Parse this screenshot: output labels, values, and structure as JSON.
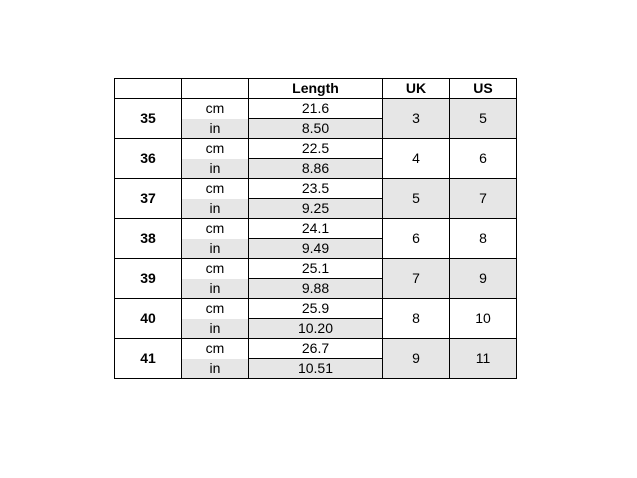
{
  "header": {
    "col1": "",
    "col2": "",
    "length": "Length",
    "uk": "UK",
    "us": "US"
  },
  "rows": [
    {
      "size": "35",
      "cm_label": "cm",
      "in_label": "in",
      "cm": "21.6",
      "in": "8.50",
      "uk": "3",
      "us": "5",
      "shaded": true
    },
    {
      "size": "36",
      "cm_label": "cm",
      "in_label": "in",
      "cm": "22.5",
      "in": "8.86",
      "uk": "4",
      "us": "6",
      "shaded": false
    },
    {
      "size": "37",
      "cm_label": "cm",
      "in_label": "in",
      "cm": "23.5",
      "in": "9.25",
      "uk": "5",
      "us": "7",
      "shaded": true
    },
    {
      "size": "38",
      "cm_label": "cm",
      "in_label": "in",
      "cm": "24.1",
      "in": "9.49",
      "uk": "6",
      "us": "8",
      "shaded": false
    },
    {
      "size": "39",
      "cm_label": "cm",
      "in_label": "in",
      "cm": "25.1",
      "in": "9.88",
      "uk": "7",
      "us": "9",
      "shaded": true
    },
    {
      "size": "40",
      "cm_label": "cm",
      "in_label": "in",
      "cm": "25.9",
      "in": "10.20",
      "uk": "8",
      "us": "10",
      "shaded": false
    },
    {
      "size": "41",
      "cm_label": "cm",
      "in_label": "in",
      "cm": "26.7",
      "in": "10.51",
      "uk": "9",
      "us": "11",
      "shaded": true
    }
  ],
  "colors": {
    "shade": "#e6e6e6",
    "border": "#000000"
  }
}
